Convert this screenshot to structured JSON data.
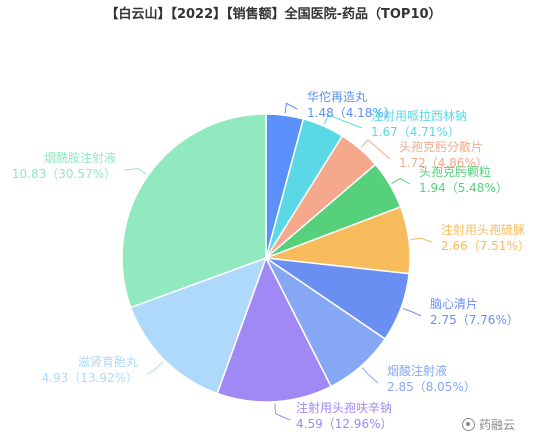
{
  "chart_data": {
    "type": "pie",
    "title": "【白云山】【2022】【销售额】全国医院-药品（TOP10）",
    "slices": [
      {
        "name": "华佗再造丸",
        "value_label": "1.48（4.18%）",
        "value": 1.48,
        "percent": 4.18,
        "color": "#5b8ff9"
      },
      {
        "name": "注射用哌拉西林钠",
        "value_label": "1.67（4.71%）",
        "value": 1.67,
        "percent": 4.71,
        "color": "#5ad8e6"
      },
      {
        "name": "头孢克肟分散片",
        "value_label": "1.72（4.86%）",
        "value": 1.72,
        "percent": 4.86,
        "color": "#f6a88d"
      },
      {
        "name": "头孢克肟颗粒",
        "value_label": "1.94（5.48%）",
        "value": 1.94,
        "percent": 5.48,
        "color": "#57d07c"
      },
      {
        "name": "注射用头孢硫脒",
        "value_label": "2.66（7.51%）",
        "value": 2.66,
        "percent": 7.51,
        "color": "#f7bb5c"
      },
      {
        "name": "脑心清片",
        "value_label": "2.75（7.76%）",
        "value": 2.75,
        "percent": 7.76,
        "color": "#6a8ff2"
      },
      {
        "name": "烟酸注射液",
        "value_label": "2.85（8.05%）",
        "value": 2.85,
        "percent": 8.05,
        "color": "#86a8f4"
      },
      {
        "name": "注射用头孢呋辛钠",
        "value_label": "4.59（12.96%）",
        "value": 4.59,
        "percent": 12.96,
        "color": "#a088f5"
      },
      {
        "name": "滋肾育胎丸",
        "value_label": "4.93（13.92%）",
        "value": 4.93,
        "percent": 13.92,
        "color": "#aed9fb"
      },
      {
        "name": "烟酰胺注射液",
        "value_label": "10.83（30.57%）",
        "value": 10.83,
        "percent": 30.57,
        "color": "#91e9c0"
      }
    ]
  },
  "watermark": {
    "icon": "radar-icon",
    "text": "药融云"
  }
}
